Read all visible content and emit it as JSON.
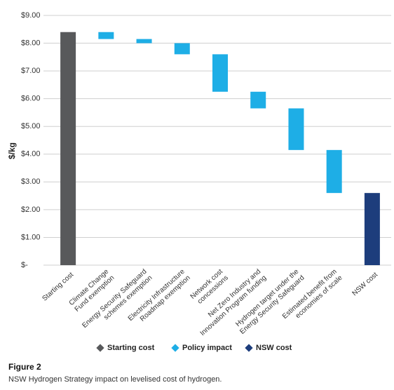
{
  "chart_data": {
    "type": "waterfall",
    "y_label": "$/kg",
    "categories": [
      [
        "Starting cost"
      ],
      [
        "Climate Change",
        "Fund exemption"
      ],
      [
        "Energy Security Safeguard",
        "schemes exemption"
      ],
      [
        "Electricity Infrastructure",
        "Roadmap exemption"
      ],
      [
        "Network cost",
        "concessions"
      ],
      [
        "Net Zero Industry and",
        "Innovation Program funding"
      ],
      [
        "Hydrogen target under the",
        "Energy Security Safeguard"
      ],
      [
        "Estimated benefit from",
        "economies of scale"
      ],
      [
        "NSW cost"
      ]
    ],
    "series": [
      {
        "name": "Starting cost",
        "color": "#58595b",
        "values": [
          8.4,
          null,
          null,
          null,
          null,
          null,
          null,
          null,
          null
        ]
      },
      {
        "name": "Policy impact",
        "color": "#1eaee6",
        "values": [
          null,
          -0.25,
          -0.15,
          -0.4,
          -1.35,
          -0.6,
          -1.5,
          -1.55,
          null
        ]
      },
      {
        "name": "NSW cost",
        "color": "#1d3d7c",
        "values": [
          null,
          null,
          null,
          null,
          null,
          null,
          null,
          null,
          2.6
        ]
      }
    ],
    "ylim": [
      0,
      9
    ],
    "yticks": [
      {
        "value": 0,
        "label": "$-"
      },
      {
        "value": 1,
        "label": "$1.00"
      },
      {
        "value": 2,
        "label": "$2.00"
      },
      {
        "value": 3,
        "label": "$3.00"
      },
      {
        "value": 4,
        "label": "$4.00"
      },
      {
        "value": 5,
        "label": "$5.00"
      },
      {
        "value": 6,
        "label": "$6.00"
      },
      {
        "value": 7,
        "label": "$7.00"
      },
      {
        "value": 8,
        "label": "$8.00"
      },
      {
        "value": 9,
        "label": "$9.00"
      }
    ],
    "grid": true,
    "legend": "bottom",
    "figure_label": "Figure 2",
    "caption": "NSW Hydrogen Strategy impact on levelised cost of hydrogen."
  }
}
